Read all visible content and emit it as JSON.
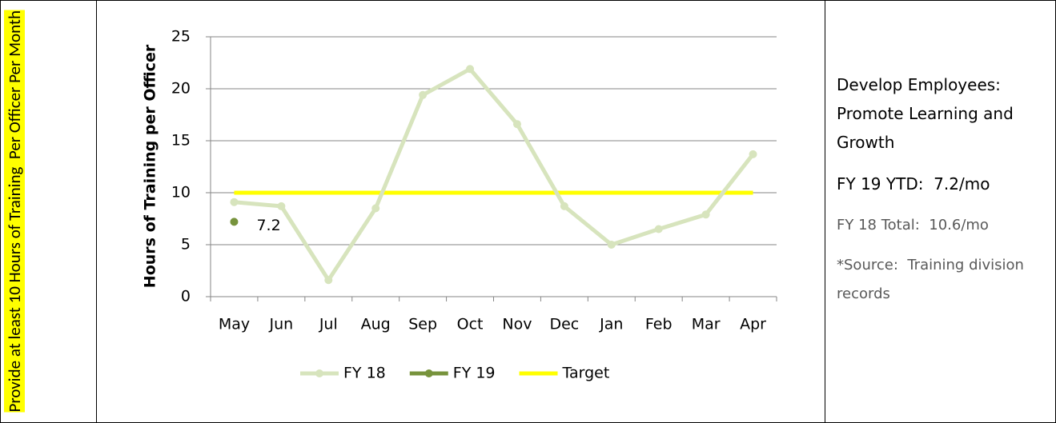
{
  "goal": "Provide at least 10 Hours of Training  Per Officer Per Month",
  "chart_data": {
    "type": "line",
    "y_label": "Hours of Training per Officer",
    "categories": [
      "May",
      "Jun",
      "Jul",
      "Aug",
      "Sep",
      "Oct",
      "Nov",
      "Dec",
      "Jan",
      "Feb",
      "Mar",
      "Apr"
    ],
    "series": [
      {
        "name": "FY 18",
        "color": "#d7e4bd",
        "markers": true,
        "values": [
          9.1,
          8.7,
          1.6,
          8.5,
          19.4,
          21.9,
          16.6,
          8.7,
          5.0,
          6.5,
          7.9,
          13.7
        ]
      },
      {
        "name": "FY 19",
        "color": "#77933c",
        "markers": true,
        "data_labels": true,
        "values": [
          7.2,
          null,
          null,
          null,
          null,
          null,
          null,
          null,
          null,
          null,
          null,
          null
        ]
      },
      {
        "name": "Target",
        "color": "#ffff00",
        "markers": false,
        "values": [
          10,
          10,
          10,
          10,
          10,
          10,
          10,
          10,
          10,
          10,
          10,
          10
        ]
      }
    ],
    "ylim": [
      0,
      25
    ],
    "yticks": [
      0,
      5,
      10,
      15,
      20,
      25
    ],
    "grid": true,
    "legend": "bottom"
  },
  "panel": {
    "heading": "Develop Employees: Promote Learning and Growth",
    "ytd": "FY 19 YTD:  7.2/mo",
    "total": "FY 18 Total:  10.6/mo",
    "source": "*Source:  Training division records"
  }
}
